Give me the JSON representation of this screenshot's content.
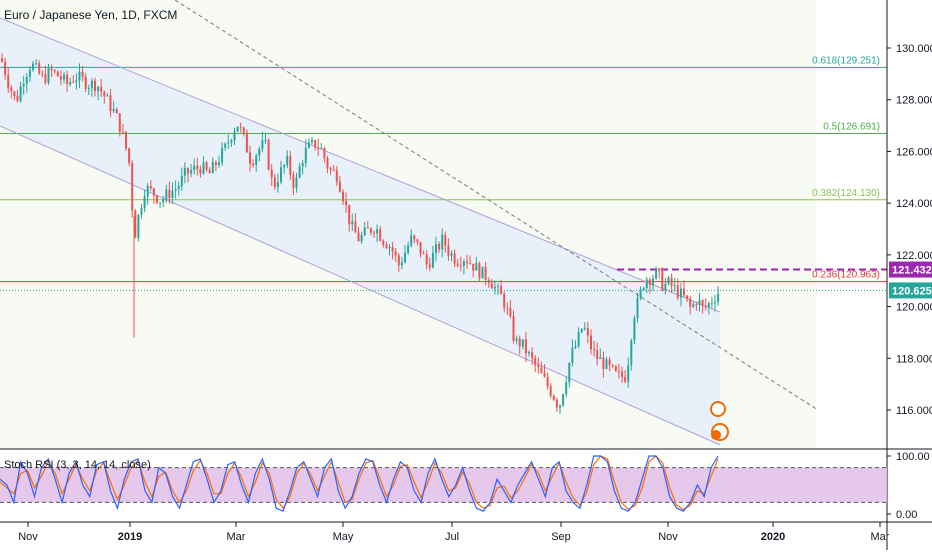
{
  "header": {
    "title": "Euro / Japanese Yen, 1D, FXCM"
  },
  "oscillator": {
    "title": "Stoch RSI (3, 3, 14, 14, close)"
  },
  "colors": {
    "up": "#26a69a",
    "down": "#ef5350",
    "channel_line": "#b39ddb",
    "channel_fill": "#e3eefb",
    "fib_0618": "#26a69a",
    "fib_05": "#4caf50",
    "fib_0382": "#8bc34a",
    "fib_0236": "#e53935",
    "resistance": "#9c27b0",
    "trend_dash": "#787b86",
    "k_line": "#2962ff",
    "d_line": "#ff6d00",
    "osc_band": "#e1bee7",
    "price_badge": "#26a69a"
  },
  "chart_data": [
    {
      "type": "candlestick",
      "title": "Euro / Japanese Yen, 1D, FXCM",
      "ylim": [
        114.5,
        131.5
      ],
      "y_ticks": [
        "130.000",
        "128.000",
        "126.000",
        "124.000",
        "122.000",
        "120.000",
        "118.000",
        "116.000"
      ],
      "x_ticks": [
        "Nov",
        "2019",
        "Mar",
        "May",
        "Jul",
        "Sep",
        "Nov",
        "2020",
        "Mar"
      ],
      "last_price": {
        "label": "120.625",
        "value": 120.625
      },
      "resistance": {
        "label": "121.432",
        "value": 121.432
      },
      "fib_levels": [
        {
          "label": "0.618(129.251)",
          "value": 129.251,
          "color_key": "fib_0618"
        },
        {
          "label": "0.5(126.691)",
          "value": 126.691,
          "color_key": "fib_05"
        },
        {
          "label": "0.382(124.130)",
          "value": 124.13,
          "color_key": "fib_0382"
        },
        {
          "label": "0.236(120.963)",
          "value": 120.963,
          "color_key": "fib_0236"
        }
      ],
      "close_path": [
        [
          0,
          129.6
        ],
        [
          8,
          128.6
        ],
        [
          15,
          127.9
        ],
        [
          22,
          128.8
        ],
        [
          30,
          129.4
        ],
        [
          36,
          129.1
        ],
        [
          42,
          128.8
        ],
        [
          50,
          129.1
        ],
        [
          58,
          128.9
        ],
        [
          66,
          128.6
        ],
        [
          74,
          128.9
        ],
        [
          80,
          128.8
        ],
        [
          88,
          128.6
        ],
        [
          96,
          128.6
        ],
        [
          104,
          128.1
        ],
        [
          112,
          127.6
        ],
        [
          118,
          127.1
        ],
        [
          124,
          126.3
        ],
        [
          129,
          125.4
        ],
        [
          133,
          122.6
        ],
        [
          138,
          123.6
        ],
        [
          144,
          124.6
        ],
        [
          152,
          124.4
        ],
        [
          160,
          124.1
        ],
        [
          168,
          124.4
        ],
        [
          176,
          124.6
        ],
        [
          184,
          125.1
        ],
        [
          192,
          125.3
        ],
        [
          200,
          125.4
        ],
        [
          208,
          125.1
        ],
        [
          216,
          125.6
        ],
        [
          224,
          126.1
        ],
        [
          232,
          126.8
        ],
        [
          236,
          127.1
        ],
        [
          242,
          126.6
        ],
        [
          250,
          125.6
        ],
        [
          258,
          126.1
        ],
        [
          264,
          126.3
        ],
        [
          272,
          124.6
        ],
        [
          278,
          125.1
        ],
        [
          286,
          125.6
        ],
        [
          294,
          124.6
        ],
        [
          300,
          125.6
        ],
        [
          306,
          126.1
        ],
        [
          314,
          126.3
        ],
        [
          320,
          126.1
        ],
        [
          328,
          125.3
        ],
        [
          336,
          125.1
        ],
        [
          342,
          124.3
        ],
        [
          350,
          123.1
        ],
        [
          358,
          122.6
        ],
        [
          366,
          122.9
        ],
        [
          374,
          123.1
        ],
        [
          382,
          122.6
        ],
        [
          390,
          122.3
        ],
        [
          398,
          121.6
        ],
        [
          404,
          122.1
        ],
        [
          410,
          122.6
        ],
        [
          418,
          122.3
        ],
        [
          426,
          121.6
        ],
        [
          434,
          122.1
        ],
        [
          442,
          122.6
        ],
        [
          448,
          122.1
        ],
        [
          456,
          121.8
        ],
        [
          464,
          121.9
        ],
        [
          472,
          121.6
        ],
        [
          480,
          121.3
        ],
        [
          488,
          121.1
        ],
        [
          496,
          120.6
        ],
        [
          502,
          120.3
        ],
        [
          508,
          119.6
        ],
        [
          514,
          118.6
        ],
        [
          520,
          118.6
        ],
        [
          528,
          118.1
        ],
        [
          536,
          117.6
        ],
        [
          544,
          117.1
        ],
        [
          552,
          116.6
        ],
        [
          558,
          116.1
        ],
        [
          564,
          117.1
        ],
        [
          570,
          118.1
        ],
        [
          576,
          118.6
        ],
        [
          582,
          119.3
        ],
        [
          588,
          118.6
        ],
        [
          594,
          118.1
        ],
        [
          600,
          117.9
        ],
        [
          608,
          117.6
        ],
        [
          616,
          117.3
        ],
        [
          624,
          117.3
        ],
        [
          628,
          118.1
        ],
        [
          632,
          119.6
        ],
        [
          638,
          120.3
        ],
        [
          644,
          121.1
        ],
        [
          650,
          121.1
        ],
        [
          656,
          121.3
        ],
        [
          662,
          120.8
        ],
        [
          668,
          120.9
        ],
        [
          676,
          120.6
        ],
        [
          684,
          120.3
        ],
        [
          690,
          119.9
        ],
        [
          696,
          120.3
        ],
        [
          702,
          119.9
        ],
        [
          708,
          120.1
        ],
        [
          714,
          120.4
        ],
        [
          718,
          120.6
        ]
      ],
      "stoch_band": [
        20,
        80
      ],
      "stoch_k": [
        60,
        50,
        20,
        90,
        70,
        30,
        80,
        95,
        60,
        20,
        70,
        90,
        50,
        30,
        85,
        90,
        40,
        10,
        60,
        90,
        95,
        40,
        20,
        80,
        70,
        30,
        10,
        50,
        90,
        95,
        60,
        20,
        40,
        85,
        90,
        50,
        20,
        70,
        95,
        60,
        10,
        5,
        40,
        80,
        90,
        60,
        30,
        80,
        95,
        40,
        10,
        30,
        70,
        95,
        90,
        50,
        20,
        60,
        90,
        80,
        40,
        20,
        70,
        95,
        60,
        30,
        50,
        80,
        40,
        10,
        5,
        20,
        60,
        40,
        20,
        50,
        70,
        90,
        60,
        30,
        80,
        90,
        40,
        20,
        10,
        50,
        100,
        100,
        90,
        40,
        10,
        5,
        20,
        60,
        100,
        100,
        80,
        30,
        10,
        5,
        20,
        50,
        30,
        80,
        100
      ],
      "stoch_d": [
        55,
        45,
        35,
        70,
        75,
        45,
        65,
        90,
        70,
        35,
        60,
        85,
        60,
        40,
        75,
        88,
        55,
        25,
        50,
        80,
        92,
        55,
        30,
        65,
        72,
        40,
        20,
        40,
        75,
        92,
        70,
        35,
        35,
        70,
        88,
        62,
        30,
        55,
        88,
        70,
        25,
        10,
        30,
        70,
        88,
        68,
        40,
        65,
        90,
        55,
        20,
        25,
        60,
        88,
        92,
        62,
        30,
        50,
        82,
        85,
        55,
        28,
        55,
        88,
        70,
        40,
        45,
        72,
        52,
        20,
        10,
        15,
        45,
        48,
        28,
        40,
        62,
        85,
        70,
        40,
        65,
        88,
        55,
        28,
        15,
        38,
        85,
        100,
        95,
        55,
        20,
        8,
        15,
        45,
        90,
        100,
        88,
        45,
        15,
        8,
        15,
        40,
        35,
        65,
        95
      ],
      "osc_ticks": [
        "100.00",
        "0.00"
      ]
    }
  ]
}
